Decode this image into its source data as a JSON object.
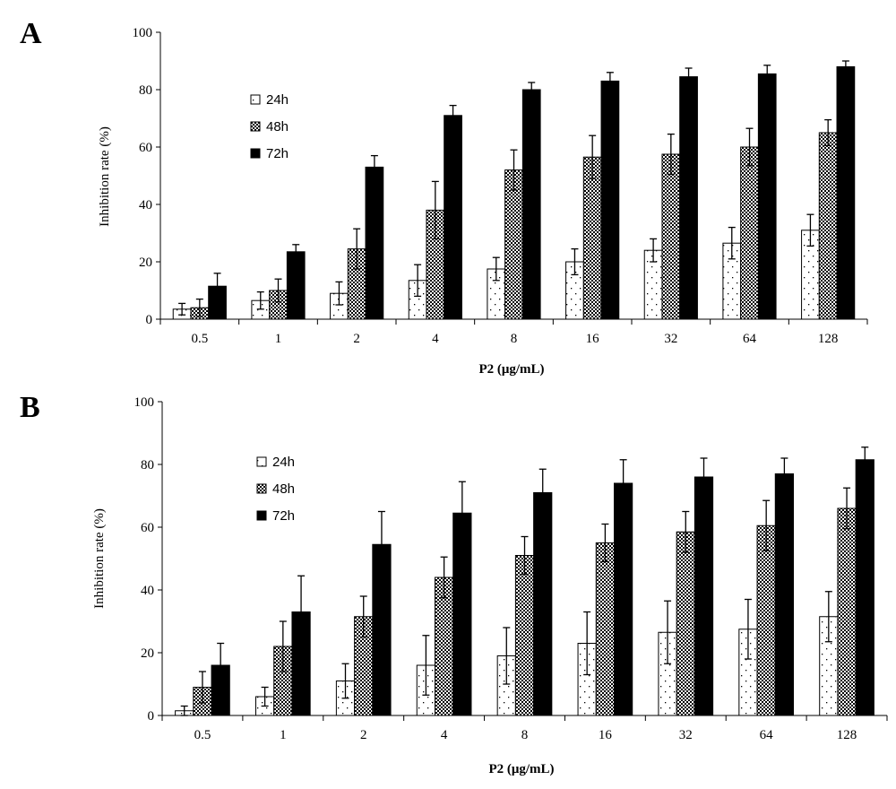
{
  "chart_data": [
    {
      "panel_label": "A",
      "type": "bar",
      "categories": [
        "0.5",
        "1",
        "2",
        "4",
        "8",
        "16",
        "32",
        "64",
        "128"
      ],
      "xlabel": "P2 (μg/mL)",
      "ylabel": "Inhibition rate (%)",
      "ylim": [
        0,
        100
      ],
      "yticks": [
        "0",
        "20",
        "40",
        "60",
        "80",
        "100"
      ],
      "legend_position": "upper-left",
      "series": [
        {
          "name": "24h",
          "pattern": "dots",
          "values": [
            3.5,
            6.5,
            9,
            13.5,
            17.5,
            20,
            24,
            26.5,
            31
          ],
          "errors": [
            2,
            3,
            4,
            5.5,
            4,
            4.5,
            4,
            5.5,
            5.5
          ]
        },
        {
          "name": "48h",
          "pattern": "crosshatch",
          "values": [
            4,
            10,
            24.5,
            38,
            52,
            56.5,
            57.5,
            60,
            65
          ],
          "errors": [
            3,
            4,
            7,
            10,
            7,
            7.5,
            7,
            6.5,
            4.5
          ]
        },
        {
          "name": "72h",
          "pattern": "solid",
          "values": [
            11.5,
            23.5,
            53,
            71,
            80,
            83,
            84.5,
            85.5,
            88
          ],
          "errors": [
            4.5,
            2.5,
            4,
            3.5,
            2.5,
            3,
            3,
            3,
            2
          ]
        }
      ]
    },
    {
      "panel_label": "B",
      "type": "bar",
      "categories": [
        "0.5",
        "1",
        "2",
        "4",
        "8",
        "16",
        "32",
        "64",
        "128"
      ],
      "xlabel": "P2 (μg/mL)",
      "ylabel": "Inhibition rate (%)",
      "ylim": [
        0,
        100
      ],
      "yticks": [
        "0",
        "20",
        "40",
        "60",
        "80",
        "100"
      ],
      "legend_position": "upper-left",
      "series": [
        {
          "name": "24h",
          "pattern": "dots",
          "values": [
            1.5,
            6,
            11,
            16,
            19,
            23,
            26.5,
            27.5,
            31.5
          ],
          "errors": [
            1.5,
            3,
            5.5,
            9.5,
            9,
            10,
            10,
            9.5,
            8
          ]
        },
        {
          "name": "48h",
          "pattern": "crosshatch",
          "values": [
            9,
            22,
            31.5,
            44,
            51,
            55,
            58.5,
            60.5,
            66
          ],
          "errors": [
            5,
            8,
            6.5,
            6.5,
            6,
            6,
            6.5,
            8,
            6.5
          ]
        },
        {
          "name": "72h",
          "pattern": "solid",
          "values": [
            16,
            33,
            54.5,
            64.5,
            71,
            74,
            76,
            77,
            81.5
          ],
          "errors": [
            7,
            11.5,
            10.5,
            10,
            7.5,
            7.5,
            6,
            5,
            4
          ]
        }
      ]
    }
  ]
}
